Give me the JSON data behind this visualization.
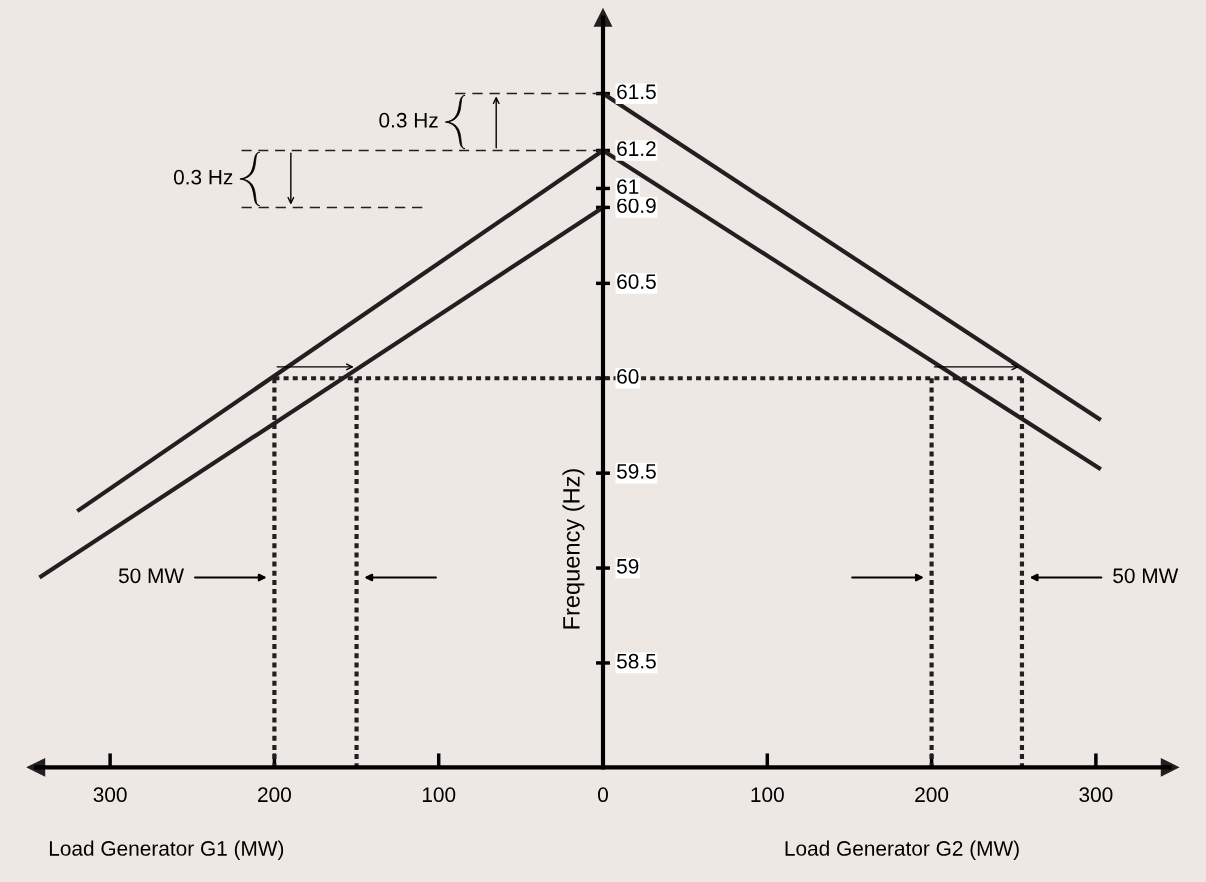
{
  "chart_data": {
    "type": "line",
    "ylabel": "Frequency (Hz)",
    "xlim": [
      -345,
      345
    ],
    "ylim": [
      57.95,
      61.9
    ],
    "xticks": [
      {
        "value": -300,
        "label": "300"
      },
      {
        "value": -200,
        "label": "200"
      },
      {
        "value": -100,
        "label": "100"
      },
      0,
      100,
      200,
      300
    ],
    "yticks": [
      58.5,
      59,
      59.5,
      60,
      60.5,
      60.9,
      61,
      61.2,
      61.5
    ],
    "marker": "none",
    "grid": false,
    "legend": false,
    "series": [
      {
        "color": "#231f20",
        "line_style": "solid",
        "x": [
          -320,
          0
        ],
        "values": [
          59.3,
          61.2
        ]
      },
      {
        "color": "#231f20",
        "line_style": "solid",
        "x": [
          -343,
          0
        ],
        "values": [
          58.95,
          60.9
        ]
      },
      {
        "color": "#231f20",
        "line_style": "solid",
        "x": [
          0,
          303
        ],
        "values": [
          61.2,
          59.52
        ]
      },
      {
        "color": "#231f20",
        "line_style": "solid",
        "x": [
          0,
          303
        ],
        "values": [
          61.5,
          59.78
        ]
      },
      {
        "color": "#231f20",
        "line_style": "dotted",
        "x": [
          -200,
          255
        ],
        "values": [
          60,
          60
        ]
      },
      {
        "color": "#231f20",
        "line_style": "dotted",
        "x": [
          -200,
          -200
        ],
        "values": [
          60,
          57.95
        ]
      },
      {
        "color": "#231f20",
        "line_style": "dotted",
        "x": [
          -150,
          -150
        ],
        "values": [
          60,
          57.95
        ]
      },
      {
        "color": "#231f20",
        "line_style": "dotted",
        "x": [
          200,
          200
        ],
        "values": [
          60,
          57.95
        ]
      },
      {
        "color": "#231f20",
        "line_style": "dotted",
        "x": [
          255,
          255
        ],
        "values": [
          60,
          57.95
        ]
      },
      {
        "color": "#231f20",
        "line_style": "dashed",
        "x": [
          -90,
          0
        ],
        "values": [
          61.5,
          61.5
        ]
      },
      {
        "color": "#231f20",
        "line_style": "dashed",
        "x": [
          -220,
          0
        ],
        "values": [
          61.2,
          61.2
        ]
      },
      {
        "color": "#231f20",
        "line_style": "dashed",
        "x": [
          -220,
          -110
        ],
        "values": [
          60.9,
          60.9
        ]
      }
    ],
    "annotations": [
      "0.3 Hz",
      "0.3 Hz",
      "50 MW",
      "50 MW",
      "Load Generator G1 (MW)",
      "Load Generator G2 (MW)"
    ]
  }
}
